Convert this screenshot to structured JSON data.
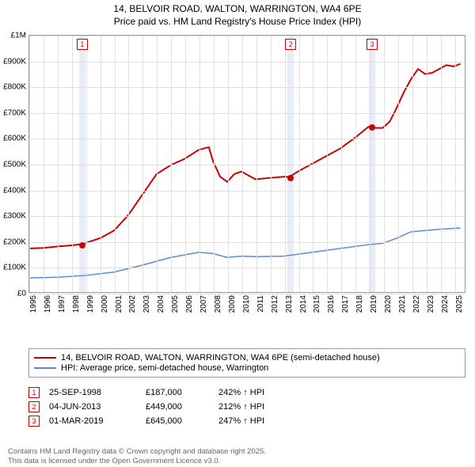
{
  "title_line1": "14, BELVOIR ROAD, WALTON, WARRINGTON, WA4 6PE",
  "title_line2": "Price paid vs. HM Land Registry's House Price Index (HPI)",
  "chart": {
    "type": "line",
    "background_color": "#ffffff",
    "grid_color": "#e0e0e0",
    "border_color": "#999999",
    "highlight_band_color": "#e8edf5",
    "xlim": [
      1995,
      2025.8
    ],
    "ylim": [
      0,
      1000000
    ],
    "ytick_step": 100000,
    "yticks": [
      {
        "v": 0,
        "label": "£0"
      },
      {
        "v": 100000,
        "label": "£100K"
      },
      {
        "v": 200000,
        "label": "£200K"
      },
      {
        "v": 300000,
        "label": "£300K"
      },
      {
        "v": 400000,
        "label": "£400K"
      },
      {
        "v": 500000,
        "label": "£500K"
      },
      {
        "v": 600000,
        "label": "£600K"
      },
      {
        "v": 700000,
        "label": "£700K"
      },
      {
        "v": 800000,
        "label": "£800K"
      },
      {
        "v": 900000,
        "label": "£900K"
      },
      {
        "v": 1000000,
        "label": "£1M"
      }
    ],
    "xticks": [
      1995,
      1996,
      1997,
      1998,
      1999,
      2000,
      2001,
      2002,
      2003,
      2004,
      2005,
      2006,
      2007,
      2008,
      2009,
      2010,
      2011,
      2012,
      2013,
      2014,
      2015,
      2016,
      2017,
      2018,
      2019,
      2020,
      2021,
      2022,
      2023,
      2024,
      2025
    ],
    "highlight_bands": [
      {
        "from": 1998.5,
        "to": 1998.95
      },
      {
        "from": 2013.2,
        "to": 2013.65
      },
      {
        "from": 2018.95,
        "to": 2019.4
      }
    ],
    "series": [
      {
        "name": "property",
        "label": "14, BELVOIR ROAD, WALTON, WARRINGTON, WA4 6PE (semi-detached house)",
        "color": "#cc0000",
        "line_width": 2,
        "data": [
          [
            1995,
            170000
          ],
          [
            1996,
            172000
          ],
          [
            1997,
            178000
          ],
          [
            1998,
            182000
          ],
          [
            1998.7,
            187000
          ],
          [
            1999,
            192000
          ],
          [
            2000,
            210000
          ],
          [
            2001,
            240000
          ],
          [
            2002,
            300000
          ],
          [
            2003,
            380000
          ],
          [
            2004,
            460000
          ],
          [
            2005,
            495000
          ],
          [
            2006,
            520000
          ],
          [
            2007,
            555000
          ],
          [
            2007.7,
            565000
          ],
          [
            2008,
            510000
          ],
          [
            2008.5,
            450000
          ],
          [
            2009,
            430000
          ],
          [
            2009.5,
            460000
          ],
          [
            2010,
            470000
          ],
          [
            2010.5,
            455000
          ],
          [
            2011,
            440000
          ],
          [
            2012,
            445000
          ],
          [
            2013,
            450000
          ],
          [
            2013.4,
            449000
          ],
          [
            2014,
            470000
          ],
          [
            2015,
            500000
          ],
          [
            2016,
            530000
          ],
          [
            2017,
            560000
          ],
          [
            2018,
            600000
          ],
          [
            2019,
            645000
          ],
          [
            2019.5,
            640000
          ],
          [
            2020,
            640000
          ],
          [
            2020.5,
            665000
          ],
          [
            2021,
            720000
          ],
          [
            2021.5,
            780000
          ],
          [
            2022,
            830000
          ],
          [
            2022.5,
            870000
          ],
          [
            2023,
            850000
          ],
          [
            2023.5,
            855000
          ],
          [
            2024,
            870000
          ],
          [
            2024.5,
            885000
          ],
          [
            2025,
            880000
          ],
          [
            2025.5,
            890000
          ]
        ]
      },
      {
        "name": "hpi",
        "label": "HPI: Average price, semi-detached house, Warrington",
        "color": "#5b8bc9",
        "line_width": 1.5,
        "data": [
          [
            1995,
            55000
          ],
          [
            1997,
            58000
          ],
          [
            1999,
            65000
          ],
          [
            2001,
            78000
          ],
          [
            2003,
            105000
          ],
          [
            2005,
            135000
          ],
          [
            2007,
            155000
          ],
          [
            2008,
            150000
          ],
          [
            2009,
            135000
          ],
          [
            2010,
            140000
          ],
          [
            2011,
            138000
          ],
          [
            2013,
            140000
          ],
          [
            2015,
            155000
          ],
          [
            2017,
            170000
          ],
          [
            2019,
            185000
          ],
          [
            2020,
            190000
          ],
          [
            2021,
            210000
          ],
          [
            2022,
            235000
          ],
          [
            2023,
            240000
          ],
          [
            2024,
            245000
          ],
          [
            2025.5,
            250000
          ]
        ]
      }
    ],
    "markers": [
      {
        "id": "1",
        "x": 1998.73,
        "y": 187000,
        "color": "#cc0000"
      },
      {
        "id": "2",
        "x": 2013.42,
        "y": 449000,
        "color": "#cc0000"
      },
      {
        "id": "3",
        "x": 2019.16,
        "y": 645000,
        "color": "#cc0000"
      }
    ]
  },
  "legend": {
    "items": [
      {
        "color": "#cc0000",
        "width": 2,
        "label": "14, BELVOIR ROAD, WALTON, WARRINGTON, WA4 6PE (semi-detached house)"
      },
      {
        "color": "#5b8bc9",
        "width": 1.5,
        "label": "HPI: Average price, semi-detached house, Warrington"
      }
    ]
  },
  "annotations": [
    {
      "id": "1",
      "color": "#cc0000",
      "date": "25-SEP-1998",
      "price": "£187,000",
      "hpi": "242% ↑ HPI"
    },
    {
      "id": "2",
      "color": "#cc0000",
      "date": "04-JUN-2013",
      "price": "£449,000",
      "hpi": "212% ↑ HPI"
    },
    {
      "id": "3",
      "color": "#cc0000",
      "date": "01-MAR-2019",
      "price": "£645,000",
      "hpi": "247% ↑ HPI"
    }
  ],
  "footer_line1": "Contains HM Land Registry data © Crown copyright and database right 2025.",
  "footer_line2": "This data is licensed under the Open Government Licence v3.0."
}
